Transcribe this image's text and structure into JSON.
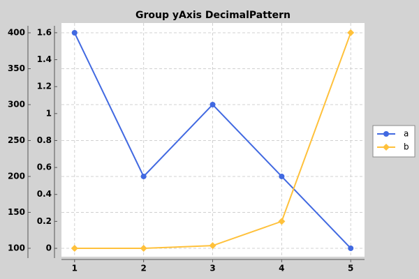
{
  "chart_data": {
    "type": "line",
    "title": "Group yAxis DecimalPattern",
    "x": [
      1,
      2,
      3,
      4,
      5
    ],
    "xlim": [
      0.81,
      5.2
    ],
    "xticks": [
      1,
      2,
      3,
      4,
      5
    ],
    "ylim": [
      88.3,
      413.6
    ],
    "yticks": [
      100,
      150,
      200,
      250,
      300,
      350,
      400
    ],
    "y2lim": [
      -0.062,
      1.672
    ],
    "y2ticks": [
      0,
      0.2,
      0.4,
      0.6,
      0.8,
      1,
      1.2,
      1.4,
      1.6
    ],
    "grid": true,
    "legend": "right",
    "series": [
      {
        "name": "a",
        "color": "#4169e1",
        "marker": "circle",
        "values": [
          400,
          200,
          300,
          200,
          100
        ]
      },
      {
        "name": "b",
        "color": "#ffc13b",
        "marker": "diamond",
        "axis": "y2",
        "values": [
          0,
          0,
          0.02,
          0.2,
          1.6
        ]
      }
    ]
  }
}
